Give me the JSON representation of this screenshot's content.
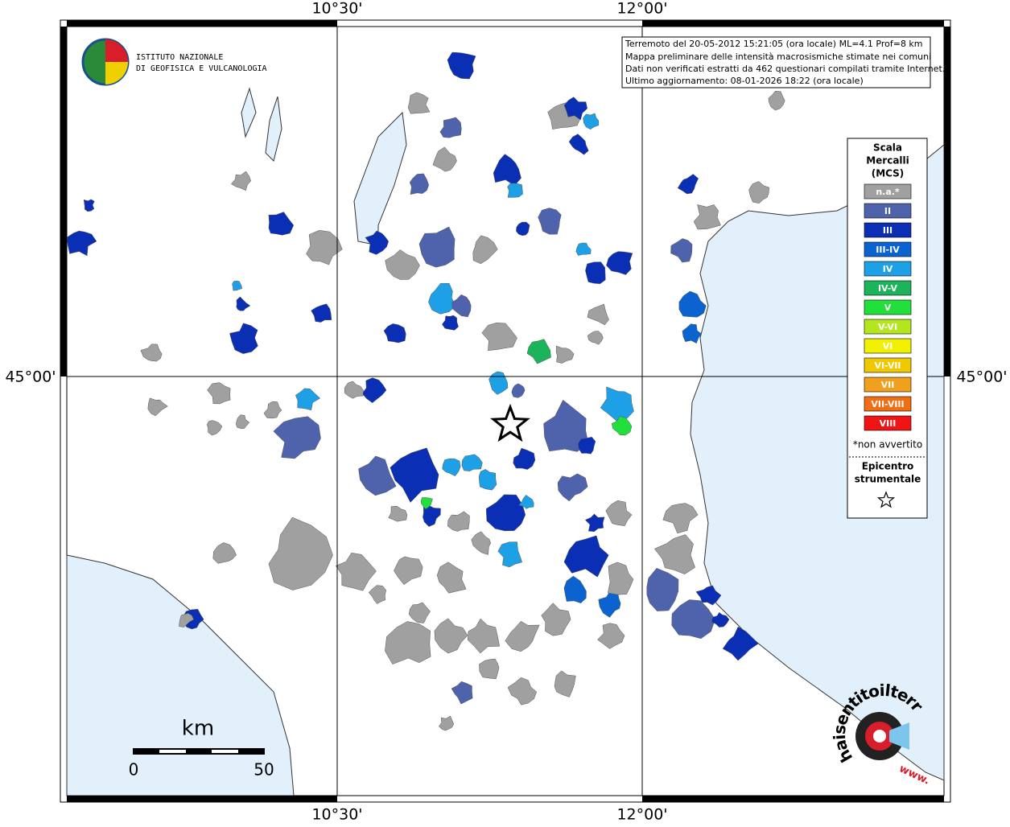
{
  "map": {
    "lon_labels": [
      "10°30'",
      "12°00'"
    ],
    "lat_label": "45°00'",
    "info_box": [
      "Terremoto del 20-05-2012 15:21:05 (ora locale) ML=4.1 Prof=8 km",
      "Mappa preliminare delle intensità macrosismiche stimate nei comuni",
      "Dati non verificati estratti da 462 questionari compilati tramite Internet.",
      "Ultimo aggiornamento: 08-01-2026 18:22 (ora locale)"
    ],
    "legend": {
      "title": [
        "Scala",
        "Mercalli",
        "(MCS)"
      ],
      "items": [
        {
          "label": "n.a.*",
          "color": "#a0a0a0"
        },
        {
          "label": "II",
          "color": "#4f63ad"
        },
        {
          "label": "III",
          "color": "#0a2eb4"
        },
        {
          "label": "III-IV",
          "color": "#0b63d0"
        },
        {
          "label": "IV",
          "color": "#1ea0e6"
        },
        {
          "label": "IV-V",
          "color": "#1bb45a"
        },
        {
          "label": "V",
          "color": "#22e03c"
        },
        {
          "label": "V-VI",
          "color": "#b4e61e"
        },
        {
          "label": "VI",
          "color": "#f0f000"
        },
        {
          "label": "VI-VII",
          "color": "#f0c800"
        },
        {
          "label": "VII",
          "color": "#f0a01e"
        },
        {
          "label": "VII-VIII",
          "color": "#f06e14"
        },
        {
          "label": "VIII",
          "color": "#f01414"
        }
      ],
      "note": "*non avvertito",
      "epicenter": [
        "Epicentro",
        "strumentale"
      ]
    },
    "scale": {
      "title": "km",
      "ticks": [
        0,
        50
      ]
    },
    "ingv": [
      "ISTITUTO NAZIONALE",
      "DI GEOFISICA E VULCANOLOGIA"
    ],
    "hsit": [
      "haisentitoilterremoto.it",
      "www."
    ]
  }
}
